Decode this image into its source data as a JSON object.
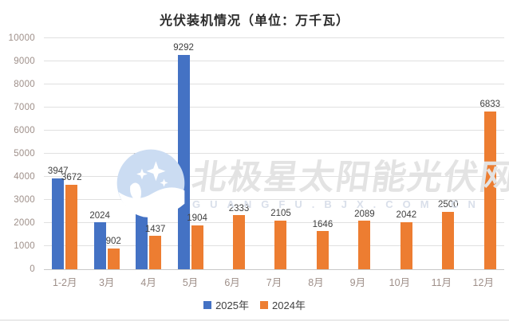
{
  "title": "光伏装机情况（单位：万千瓦）",
  "watermark": {
    "brand": "北极星太阳能光伏网",
    "domain": "GUANGFU.BJX.COM.CN",
    "logo": "cloud-sparkle-logo"
  },
  "colors": {
    "series_2025": "#4472C4",
    "series_2024": "#ED7D31",
    "gridline": "#E0E0E0",
    "axis_label": "#9E8F89",
    "data_label": "#3F3F3F",
    "watermark_text": "#E3E3E3",
    "watermark_logo": "#CBDCF2"
  },
  "chart_data": {
    "type": "bar",
    "title": "光伏装机情况（单位：万千瓦）",
    "categories": [
      "1-2月",
      "3月",
      "4月",
      "5月",
      "6月",
      "7月",
      "8月",
      "9月",
      "10月",
      "11月",
      "12月"
    ],
    "series": [
      {
        "name": "2025年",
        "color": "#4472C4",
        "values": [
          3947,
          2024,
          4522,
          9292,
          null,
          null,
          null,
          null,
          null,
          null,
          null
        ]
      },
      {
        "name": "2024年",
        "color": "#ED7D31",
        "values": [
          3672,
          902,
          1437,
          1904,
          2333,
          2105,
          1646,
          2089,
          2042,
          2500,
          6833
        ]
      }
    ],
    "xlabel": "",
    "ylabel": "",
    "ylim": [
      0,
      10000
    ],
    "yticks": [
      0,
      1000,
      2000,
      3000,
      4000,
      5000,
      6000,
      7000,
      8000,
      9000,
      10000
    ],
    "grid": true,
    "data_labels": true,
    "legend_position": "bottom"
  }
}
